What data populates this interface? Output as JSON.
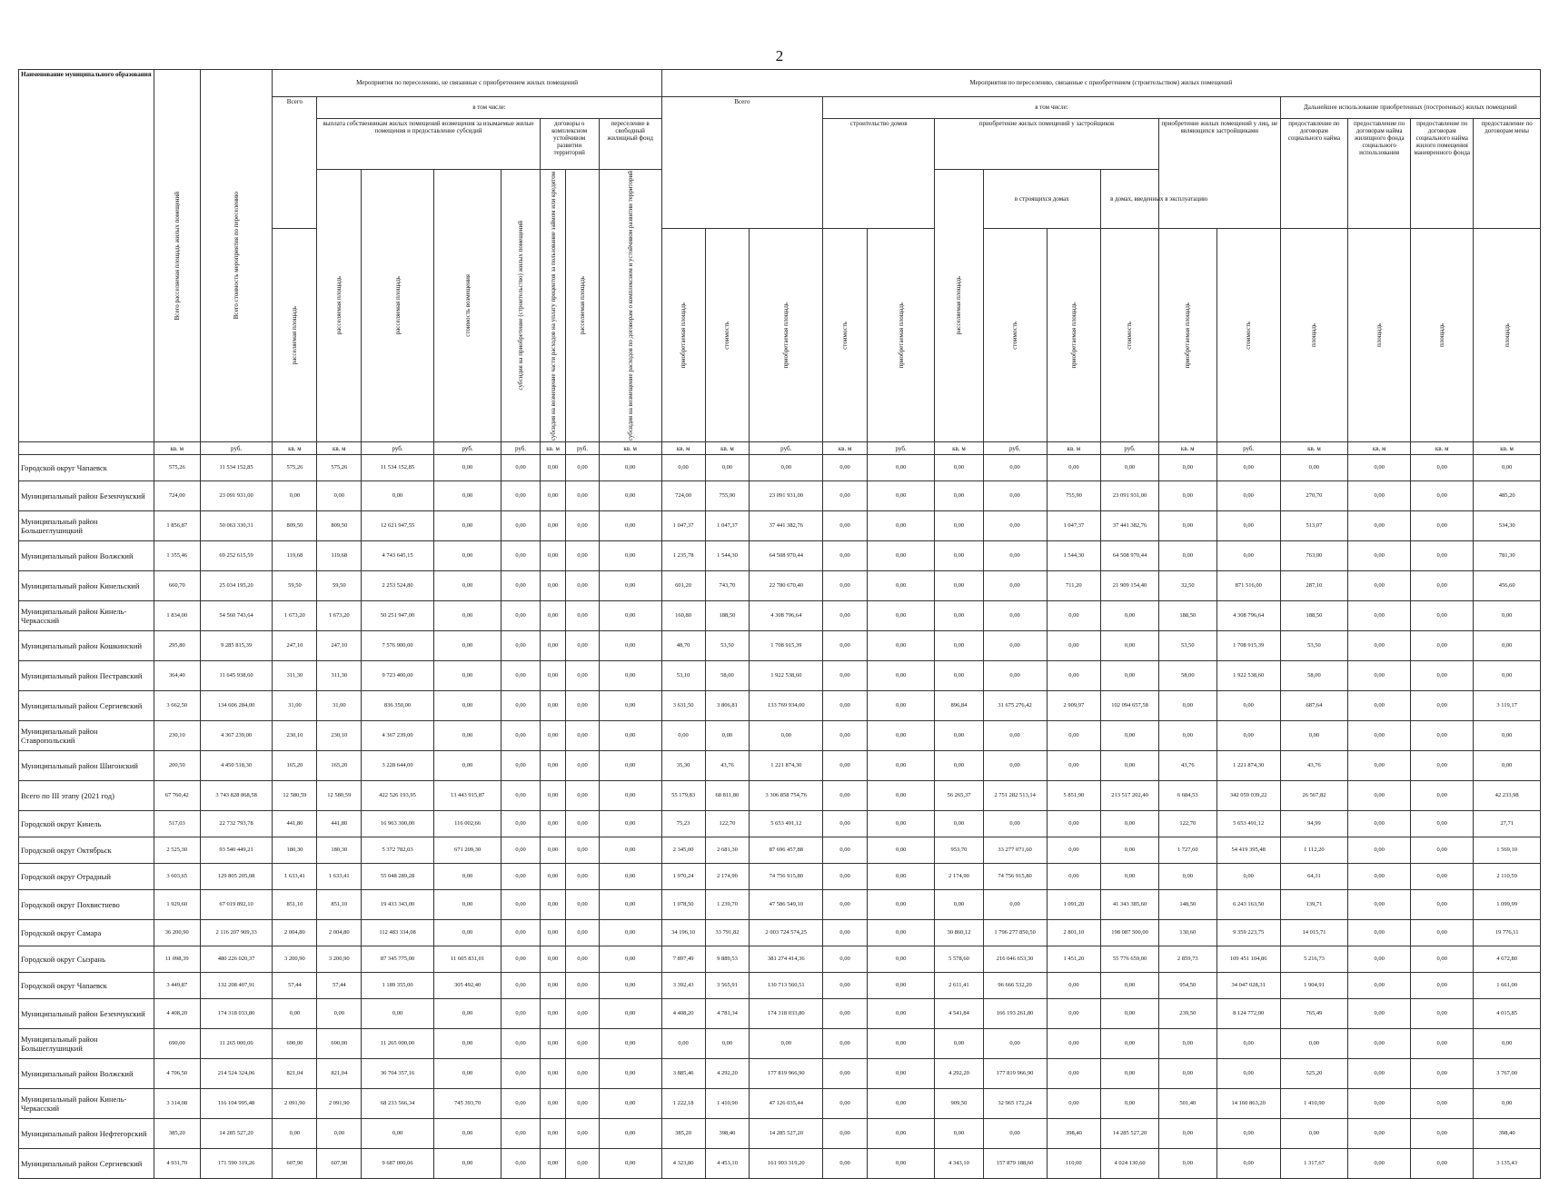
{
  "page_number": "2",
  "header": {
    "name_col": "Наименование муниципального образования",
    "total_area": "Всего расселяемая площадь жилых помещений",
    "total_cost": "Всего стоимость мероприятия по переселению",
    "group_a": "Мероприятия по переселению, не связанные с приобретением жилых помещений",
    "group_b": "Мероприятия по переселению, связанные с приобретением (строительством) жилых помещений",
    "vsego": "Всего",
    "v_tom_chisle": "в том числе:",
    "vykupka": "выплата собственникам жилых помещений возмещения за изымаемые жилые помещения и предоставление субсидий",
    "dogovory": "договоры о комплексном устойчивом развитии территорий",
    "pereselenie": "переселение в свободный жилищный фонд",
    "stroitelstvo": "строительство домов",
    "priobr_zastr": "приобретение жилых помещений у застройщиков",
    "priobr_lic": "приобретение жилых помещений у лиц, не являющихся застройщиками",
    "dalneishee": "Дальнейшее использование приобретенных (построенных) жилых помещений",
    "predost_soc": "предоставление по договорам социального найма",
    "predost_kommerch": "предоставление по договорам найма жилищного фонда социального использования",
    "predost_manevr": "предоставление по договорам социального найма жилого помещения маневренного фонда",
    "predost_mena": "предоставление по договорам мены",
    "v_stroyashch": "в строящихся домах",
    "v_domah": "в домах, введенных в эксплуатацию",
    "rasselyaemaya": "расселяемая площадь",
    "stoimost_vozm": "стоимость возмещения",
    "subsidiya": "субсидия на приобретение (строительство) жилых помещений",
    "subsidiya_proc": "субсидия на возмещение части расходов на уплату процентов за пользование займом или кредитом",
    "vozm_rashodov": "субсидия на возмещение расходов по договорам о комплексном и устойчивом развитии территорий",
    "priobretaemaya": "приобретаемая площадь",
    "stoimost": "стоимость",
    "ploshchad": "площадь",
    "kv_m": "кв. м",
    "rub": "руб."
  },
  "rows": [
    {
      "name": "Городской округ Чапаевск",
      "v": [
        "575,26",
        "11 534 152,85",
        "575,26",
        "575,26",
        "11 534 152,85",
        "0,00",
        "0,00",
        "0,00",
        "0,00",
        "0,00",
        "0,00",
        "0,00",
        "0,00",
        "0,00",
        "0,00",
        "0,00",
        "0,00",
        "0,00",
        "0,00",
        "0,00",
        "0,00",
        "0,00",
        "0,00",
        "0,00",
        "0,00",
        "0,00"
      ]
    },
    {
      "name": "Муниципальный район Безенчукский",
      "v": [
        "724,00",
        "23 091 931,00",
        "0,00",
        "0,00",
        "0,00",
        "0,00",
        "0,00",
        "0,00",
        "0,00",
        "0,00",
        "724,00",
        "755,90",
        "23 091 931,00",
        "0,00",
        "0,00",
        "0,00",
        "0,00",
        "755,90",
        "23 091 931,00",
        "0,00",
        "0,00",
        "270,70",
        "0,00",
        "0,00",
        "485,20"
      ]
    },
    {
      "name": "Муниципальный район Большеглушицкий",
      "v": [
        "1 856,87",
        "50 063 330,31",
        "809,50",
        "809,50",
        "12 621 947,55",
        "0,00",
        "0,00",
        "0,00",
        "0,00",
        "0,00",
        "1 047,37",
        "1 047,37",
        "37 441 382,76",
        "0,00",
        "0,00",
        "0,00",
        "0,00",
        "1 047,37",
        "37 441 382,76",
        "0,00",
        "0,00",
        "513,07",
        "0,00",
        "0,00",
        "534,30"
      ]
    },
    {
      "name": "Муниципальный район Волжский",
      "v": [
        "1 355,46",
        "69 252 615,59",
        "119,68",
        "119,68",
        "4 743 645,15",
        "0,00",
        "0,00",
        "0,00",
        "0,00",
        "0,00",
        "1 235,78",
        "1 544,30",
        "64 508 970,44",
        "0,00",
        "0,00",
        "0,00",
        "0,00",
        "1 544,30",
        "64 508 970,44",
        "0,00",
        "0,00",
        "763,00",
        "0,00",
        "0,00",
        "781,30"
      ]
    },
    {
      "name": "Муниципальный район Кинельский",
      "v": [
        "660,70",
        "25 034 195,20",
        "59,50",
        "59,50",
        "2 253 524,80",
        "0,00",
        "0,00",
        "0,00",
        "0,00",
        "0,00",
        "601,20",
        "743,70",
        "22 780 670,40",
        "0,00",
        "0,00",
        "0,00",
        "0,00",
        "711,20",
        "21 909 154,40",
        "32,50",
        "871 516,00",
        "287,10",
        "0,00",
        "0,00",
        "456,60"
      ]
    },
    {
      "name": "Муниципальный район Кинель-Черкасский",
      "v": [
        "1 834,00",
        "54 560 743,64",
        "1 673,20",
        "1 673,20",
        "50 251 947,00",
        "0,00",
        "0,00",
        "0,00",
        "0,00",
        "0,00",
        "160,80",
        "188,50",
        "4 308 796,64",
        "0,00",
        "0,00",
        "0,00",
        "0,00",
        "0,00",
        "0,00",
        "188,50",
        "4 308 796,64",
        "188,50",
        "0,00",
        "0,00",
        "0,00"
      ]
    },
    {
      "name": "Муниципальный район Кошкинский",
      "v": [
        "295,80",
        "9 285 815,39",
        "247,10",
        "247,10",
        "7 576 900,00",
        "0,00",
        "0,00",
        "0,00",
        "0,00",
        "0,00",
        "48,70",
        "53,50",
        "1 708 915,39",
        "0,00",
        "0,00",
        "0,00",
        "0,00",
        "0,00",
        "0,00",
        "53,50",
        "1 708 915,39",
        "53,50",
        "0,00",
        "0,00",
        "0,00"
      ]
    },
    {
      "name": "Муниципальный район Пестравский",
      "v": [
        "364,40",
        "11 645 938,60",
        "311,30",
        "311,30",
        "9 723 400,00",
        "0,00",
        "0,00",
        "0,00",
        "0,00",
        "0,00",
        "53,10",
        "58,00",
        "1 922 538,60",
        "0,00",
        "0,00",
        "0,00",
        "0,00",
        "0,00",
        "0,00",
        "58,00",
        "1 922 538,60",
        "58,00",
        "0,00",
        "0,00",
        "0,00"
      ]
    },
    {
      "name": "Муниципальный район Сергиевский",
      "v": [
        "3 662,50",
        "134 606 284,00",
        "31,00",
        "31,00",
        "836 350,00",
        "0,00",
        "0,00",
        "0,00",
        "0,00",
        "0,00",
        "3 631,50",
        "3 806,81",
        "133 769 934,00",
        "0,00",
        "0,00",
        "896,84",
        "31 675 276,42",
        "2 909,97",
        "102 094 657,58",
        "0,00",
        "0,00",
        "687,64",
        "0,00",
        "0,00",
        "3 119,17"
      ]
    },
    {
      "name": "Муниципальный район Ставропольский",
      "v": [
        "230,10",
        "4 367 239,00",
        "230,10",
        "230,10",
        "4 367 239,00",
        "0,00",
        "0,00",
        "0,00",
        "0,00",
        "0,00",
        "0,00",
        "0,00",
        "0,00",
        "0,00",
        "0,00",
        "0,00",
        "0,00",
        "0,00",
        "0,00",
        "0,00",
        "0,00",
        "0,00",
        "0,00",
        "0,00",
        "0,00"
      ]
    },
    {
      "name": "Муниципальный район Шигонский",
      "v": [
        "200,50",
        "4 450 518,30",
        "165,20",
        "165,20",
        "3 228 644,00",
        "0,00",
        "0,00",
        "0,00",
        "0,00",
        "0,00",
        "35,30",
        "43,76",
        "1 221 874,30",
        "0,00",
        "0,00",
        "0,00",
        "0,00",
        "0,00",
        "0,00",
        "43,76",
        "1 221 874,30",
        "43,76",
        "0,00",
        "0,00",
        "0,00"
      ]
    },
    {
      "name": "Всего по III этапу (2021 год)",
      "v": [
        "67 760,42",
        "3 743 828 868,58",
        "12 580,59",
        "12 580,59",
        "422 526 193,95",
        "13 443 915,87",
        "0,00",
        "0,00",
        "0,00",
        "0,00",
        "55 179,83",
        "68 811,80",
        "3 306 858 754,76",
        "0,00",
        "0,00",
        "56 265,37",
        "2 751 282 513,14",
        "5 851,90",
        "213 517 202,40",
        "6 684,53",
        "342 059 039,22",
        "26 567,82",
        "0,00",
        "0,00",
        "42 233,98"
      ]
    },
    {
      "name": "Городской округ Кинель",
      "v": [
        "517,03",
        "22 732 793,78",
        "441,80",
        "441,80",
        "16 963 300,00",
        "116 002,66",
        "0,00",
        "0,00",
        "0,00",
        "0,00",
        "75,23",
        "122,70",
        "5 653 491,12",
        "0,00",
        "0,00",
        "0,00",
        "0,00",
        "0,00",
        "0,00",
        "122,70",
        "5 653 491,12",
        "94,99",
        "0,00",
        "0,00",
        "27,71"
      ]
    },
    {
      "name": "Городской округ Октябрьск",
      "v": [
        "2 525,30",
        "93 540 449,21",
        "180,30",
        "180,30",
        "5 372 782,03",
        "671 209,30",
        "0,00",
        "0,00",
        "0,00",
        "0,00",
        "2 345,00",
        "2 681,30",
        "87 696 457,88",
        "0,00",
        "0,00",
        "953,70",
        "33 277 071,60",
        "0,00",
        "0,00",
        "1 727,60",
        "54 419 395,48",
        "1 112,20",
        "0,00",
        "0,00",
        "1 569,10"
      ]
    },
    {
      "name": "Городской округ Отрадный",
      "v": [
        "3 603,65",
        "129 805 205,08",
        "1 633,41",
        "1 633,41",
        "55 048 289,28",
        "0,00",
        "0,00",
        "0,00",
        "0,00",
        "0,00",
        "1 970,24",
        "2 174,90",
        "74 756 915,80",
        "0,00",
        "0,00",
        "2 174,90",
        "74 756 915,80",
        "0,00",
        "0,00",
        "0,00",
        "0,00",
        "64,31",
        "0,00",
        "0,00",
        "2 110,59"
      ]
    },
    {
      "name": "Городской округ Похвистнево",
      "v": [
        "1 929,60",
        "67 019 892,10",
        "851,10",
        "851,10",
        "19 433 343,00",
        "0,00",
        "0,00",
        "0,00",
        "0,00",
        "0,00",
        "1 078,50",
        "1 239,70",
        "47 586 549,10",
        "0,00",
        "0,00",
        "0,00",
        "0,00",
        "1 091,20",
        "41 343 385,60",
        "148,50",
        "6 243 163,50",
        "139,71",
        "0,00",
        "0,00",
        "1 099,99"
      ]
    },
    {
      "name": "Городской округ Самара",
      "v": [
        "36 200,90",
        "2 116 207 909,33",
        "2 004,80",
        "2 004,80",
        "112 483 334,08",
        "0,00",
        "0,00",
        "0,00",
        "0,00",
        "0,00",
        "34 196,10",
        "33 791,82",
        "2 003 724 574,25",
        "0,00",
        "0,00",
        "30 860,12",
        "1 796 277 850,50",
        "2 801,10",
        "198 087 500,00",
        "130,60",
        "9 359 223,75",
        "14 015,71",
        "0,00",
        "0,00",
        "19 776,11"
      ]
    },
    {
      "name": "Городской округ Сызрань",
      "v": [
        "11 098,39",
        "480 226 020,37",
        "3 200,90",
        "3 200,90",
        "87 345 775,00",
        "11 605 831,01",
        "0,00",
        "0,00",
        "0,00",
        "0,00",
        "7 897,49",
        "9 889,53",
        "381 274 414,36",
        "0,00",
        "0,00",
        "5 578,60",
        "216 046 653,30",
        "1 451,20",
        "55 776 659,00",
        "2 859,73",
        "109 451 104,86",
        "5 216,73",
        "0,00",
        "0,00",
        "4 672,80"
      ]
    },
    {
      "name": "Городской округ Чапаевск",
      "v": [
        "3 449,87",
        "132 208 407,91",
        "57,44",
        "57,44",
        "1 189 355,00",
        "305 492,40",
        "0,00",
        "0,00",
        "0,00",
        "0,00",
        "3 392,43",
        "3 565,91",
        "130 713 560,51",
        "0,00",
        "0,00",
        "2 611,41",
        "96 666 532,20",
        "0,00",
        "0,00",
        "954,50",
        "34 047 028,31",
        "1 904,91",
        "0,00",
        "0,00",
        "1 661,00"
      ]
    },
    {
      "name": "Муниципальный район Безенчукский",
      "v": [
        "4 408,20",
        "174 318 033,80",
        "0,00",
        "0,00",
        "0,00",
        "0,00",
        "0,00",
        "0,00",
        "0,00",
        "0,00",
        "4 408,20",
        "4 781,34",
        "174 318 033,80",
        "0,00",
        "0,00",
        "4 541,84",
        "166 193 261,80",
        "0,00",
        "0,00",
        "239,50",
        "8 124 772,00",
        "765,49",
        "0,00",
        "0,00",
        "4 015,85"
      ]
    },
    {
      "name": "Муниципальный район Большеглушицкий",
      "v": [
        "690,00",
        "11 265 000,00",
        "690,00",
        "690,00",
        "11 265 000,00",
        "0,00",
        "0,00",
        "0,00",
        "0,00",
        "0,00",
        "0,00",
        "0,00",
        "0,00",
        "0,00",
        "0,00",
        "0,00",
        "0,00",
        "0,00",
        "0,00",
        "0,00",
        "0,00",
        "0,00",
        "0,00",
        "0,00",
        "0,00"
      ]
    },
    {
      "name": "Муниципальный район Волжский",
      "v": [
        "4 706,50",
        "214 524 324,06",
        "821,04",
        "821,04",
        "36 704 357,16",
        "0,00",
        "0,00",
        "0,00",
        "0,00",
        "0,00",
        "3 885,46",
        "4 292,20",
        "177 819 966,90",
        "0,00",
        "0,00",
        "4 292,20",
        "177 819 966,90",
        "0,00",
        "0,00",
        "0,00",
        "0,00",
        "525,20",
        "0,00",
        "0,00",
        "3 767,00"
      ]
    },
    {
      "name": "Муниципальный район Кинель-Черкасский",
      "v": [
        "3 314,08",
        "116 104 995,48",
        "2 091,90",
        "2 091,90",
        "68 233 566,34",
        "745 393,70",
        "0,00",
        "0,00",
        "0,00",
        "0,00",
        "1 222,18",
        "1 410,90",
        "47 126 035,44",
        "0,00",
        "0,00",
        "909,50",
        "32 965 172,24",
        "0,00",
        "0,00",
        "501,40",
        "14 160 863,20",
        "1 410,90",
        "0,00",
        "0,00",
        "0,00"
      ]
    },
    {
      "name": "Муниципальный район Нефтегорский",
      "v": [
        "385,20",
        "14 285 527,20",
        "0,00",
        "0,00",
        "0,00",
        "0,00",
        "0,00",
        "0,00",
        "0,00",
        "0,00",
        "385,20",
        "398,40",
        "14 285 527,20",
        "0,00",
        "0,00",
        "0,00",
        "0,00",
        "398,40",
        "14 285 527,20",
        "0,00",
        "0,00",
        "0,00",
        "0,00",
        "0,00",
        "398,40"
      ]
    },
    {
      "name": "Муниципальный район Сергиевский",
      "v": [
        "4 931,70",
        "171 590 319,26",
        "607,90",
        "607,90",
        "9 687 000,06",
        "0,00",
        "0,00",
        "0,00",
        "0,00",
        "0,00",
        "4 323,80",
        "4 453,10",
        "161 903 319,20",
        "0,00",
        "0,00",
        "4 343,10",
        "157 879 188,60",
        "110,00",
        "4 024 130,60",
        "0,00",
        "0,00",
        "1 317,67",
        "0,00",
        "0,00",
        "3 135,43"
      ]
    }
  ]
}
